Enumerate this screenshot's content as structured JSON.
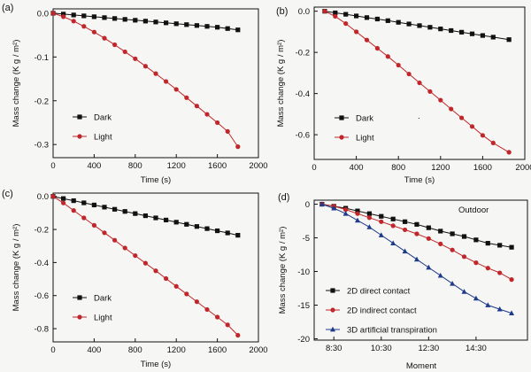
{
  "colors": {
    "dark": "#111111",
    "light": "#c0262a",
    "d2direct": "#111111",
    "d2indirect": "#c0262a",
    "d3": "#1e3a8a"
  },
  "chart_data": [
    {
      "panel": "(a)",
      "type": "line",
      "xlabel": "Time (s)",
      "ylabel": "Mass change (K g / m²)",
      "xlim": [
        0,
        2000
      ],
      "ylim": [
        -0.33,
        0.01
      ],
      "xticks": [
        0,
        400,
        800,
        1200,
        1600,
        2000
      ],
      "yticks": [
        0.0,
        -0.1,
        -0.2,
        -0.3
      ],
      "xtick_labels": [
        "0",
        "400",
        "800",
        "1200",
        "1600",
        "2000"
      ],
      "ytick_labels": [
        "0.0",
        "-0.1",
        "-0.2",
        "-0.3"
      ],
      "legend_position": "lower-left",
      "series": [
        {
          "name": "Dark",
          "marker": "square",
          "color": "#111111",
          "x": [
            0,
            100,
            200,
            300,
            400,
            500,
            600,
            700,
            800,
            900,
            1000,
            1100,
            1200,
            1300,
            1400,
            1500,
            1600,
            1700,
            1800
          ],
          "y": [
            0,
            -0.002,
            -0.004,
            -0.006,
            -0.008,
            -0.01,
            -0.012,
            -0.014,
            -0.016,
            -0.018,
            -0.02,
            -0.022,
            -0.024,
            -0.026,
            -0.028,
            -0.03,
            -0.032,
            -0.035,
            -0.038
          ]
        },
        {
          "name": "Light",
          "marker": "circle",
          "color": "#c0262a",
          "x": [
            0,
            100,
            200,
            300,
            400,
            500,
            600,
            700,
            800,
            900,
            1000,
            1100,
            1200,
            1300,
            1400,
            1500,
            1600,
            1700,
            1800
          ],
          "y": [
            0,
            -0.008,
            -0.018,
            -0.03,
            -0.043,
            -0.057,
            -0.072,
            -0.088,
            -0.104,
            -0.121,
            -0.138,
            -0.156,
            -0.174,
            -0.193,
            -0.212,
            -0.231,
            -0.25,
            -0.27,
            -0.305
          ]
        }
      ]
    },
    {
      "panel": "(b)",
      "type": "line",
      "xlabel": "Time (s)",
      "ylabel": "Mass change (K g / m²)",
      "xlim": [
        0,
        2000
      ],
      "ylim": [
        -0.72,
        0.02
      ],
      "xticks": [
        0,
        400,
        800,
        1200,
        1600,
        2000
      ],
      "yticks": [
        0.0,
        -0.2,
        -0.4,
        -0.6
      ],
      "xtick_labels": [
        "0",
        "400",
        "800",
        "1200",
        "1600",
        "2000"
      ],
      "ytick_labels": [
        "0.0",
        "-0.2",
        "-0.4",
        "-0.6"
      ],
      "legend_position": "lower-left",
      "annotations": [
        "."
      ],
      "series": [
        {
          "name": "Dark",
          "marker": "square",
          "color": "#111111",
          "x": [
            100,
            200,
            300,
            400,
            500,
            600,
            700,
            800,
            900,
            1000,
            1100,
            1200,
            1300,
            1400,
            1500,
            1600,
            1700,
            1850
          ],
          "y": [
            0,
            -0.008,
            -0.015,
            -0.023,
            -0.031,
            -0.038,
            -0.046,
            -0.054,
            -0.062,
            -0.07,
            -0.078,
            -0.086,
            -0.094,
            -0.102,
            -0.11,
            -0.118,
            -0.126,
            -0.138
          ]
        },
        {
          "name": "Light",
          "marker": "circle",
          "color": "#c0262a",
          "x": [
            100,
            200,
            300,
            400,
            500,
            600,
            700,
            800,
            900,
            1000,
            1100,
            1200,
            1300,
            1400,
            1500,
            1600,
            1700,
            1850
          ],
          "y": [
            0,
            -0.025,
            -0.06,
            -0.1,
            -0.14,
            -0.18,
            -0.22,
            -0.262,
            -0.305,
            -0.348,
            -0.39,
            -0.432,
            -0.475,
            -0.518,
            -0.56,
            -0.603,
            -0.64,
            -0.685
          ]
        }
      ]
    },
    {
      "panel": "(c)",
      "type": "line",
      "xlabel": "Time (s)",
      "ylabel": "Mass change (K g / m²)",
      "xlim": [
        0,
        2000
      ],
      "ylim": [
        -0.88,
        0.02
      ],
      "xticks": [
        0,
        400,
        800,
        1200,
        1600,
        2000
      ],
      "yticks": [
        0.0,
        -0.2,
        -0.4,
        -0.6,
        -0.8
      ],
      "xtick_labels": [
        "0",
        "400",
        "800",
        "1200",
        "1600",
        "2000"
      ],
      "ytick_labels": [
        "0.0",
        "-0.2",
        "-0.4",
        "-0.6",
        "-0.8"
      ],
      "legend_position": "lower-left",
      "series": [
        {
          "name": "Dark",
          "marker": "square",
          "color": "#111111",
          "x": [
            0,
            100,
            200,
            300,
            400,
            500,
            600,
            700,
            800,
            900,
            1000,
            1100,
            1200,
            1300,
            1400,
            1500,
            1600,
            1700,
            1800
          ],
          "y": [
            0,
            -0.013,
            -0.026,
            -0.039,
            -0.052,
            -0.065,
            -0.078,
            -0.091,
            -0.104,
            -0.117,
            -0.13,
            -0.143,
            -0.156,
            -0.169,
            -0.182,
            -0.195,
            -0.208,
            -0.221,
            -0.235
          ]
        },
        {
          "name": "Light",
          "marker": "circle",
          "color": "#c0262a",
          "x": [
            0,
            100,
            200,
            300,
            400,
            500,
            600,
            700,
            800,
            900,
            1000,
            1100,
            1200,
            1300,
            1400,
            1500,
            1600,
            1700,
            1800
          ],
          "y": [
            0,
            -0.04,
            -0.085,
            -0.13,
            -0.175,
            -0.22,
            -0.265,
            -0.312,
            -0.358,
            -0.404,
            -0.45,
            -0.497,
            -0.544,
            -0.59,
            -0.637,
            -0.684,
            -0.73,
            -0.777,
            -0.84
          ]
        }
      ]
    },
    {
      "panel": "(d)",
      "type": "line",
      "xlabel": "Moment",
      "ylabel": "Mass change (K g / m²)",
      "xlim": [
        7.67,
        16.67
      ],
      "ylim": [
        -20.2,
        0.6
      ],
      "xticks": [
        8.5,
        10.5,
        12.5,
        14.5
      ],
      "yticks": [
        0,
        -5,
        -10,
        -15,
        -20
      ],
      "xtick_labels": [
        "8:30",
        "10:30",
        "12:30",
        "14:30"
      ],
      "ytick_labels": [
        "0",
        "-5",
        "-10",
        "-15",
        "-20"
      ],
      "legend_position": "lower-left",
      "annotations": [
        "Outdoor"
      ],
      "series": [
        {
          "name": "2D direct contact",
          "marker": "square",
          "color": "#111111",
          "x": [
            8,
            8.5,
            9,
            9.5,
            10,
            10.5,
            11,
            11.5,
            12,
            12.5,
            13,
            13.5,
            14,
            14.5,
            15,
            15.5,
            16
          ],
          "y": [
            0,
            -0.3,
            -0.6,
            -1.0,
            -1.4,
            -1.8,
            -2.2,
            -2.6,
            -3.0,
            -3.5,
            -4.0,
            -4.4,
            -4.8,
            -5.3,
            -5.8,
            -6.1,
            -6.4
          ]
        },
        {
          "name": "2D indirect contact",
          "marker": "circle",
          "color": "#c0262a",
          "x": [
            8,
            8.5,
            9,
            9.5,
            10,
            10.5,
            11,
            11.5,
            12,
            12.5,
            13,
            13.5,
            14,
            14.5,
            15,
            15.5,
            16
          ],
          "y": [
            0,
            -0.3,
            -0.8,
            -1.4,
            -2.0,
            -2.6,
            -3.2,
            -3.8,
            -4.4,
            -5.1,
            -5.9,
            -6.8,
            -7.8,
            -8.7,
            -9.5,
            -10.2,
            -11.2
          ]
        },
        {
          "name": "3D artificial transpiration",
          "marker": "triangle",
          "color": "#1e3a8a",
          "x": [
            8,
            8.5,
            9,
            9.5,
            10,
            10.5,
            11,
            11.5,
            12,
            12.5,
            13,
            13.5,
            14,
            14.5,
            15,
            15.5,
            16
          ],
          "y": [
            0,
            -0.6,
            -1.4,
            -2.4,
            -3.4,
            -4.6,
            -5.8,
            -7.0,
            -8.2,
            -9.4,
            -10.6,
            -11.8,
            -13.0,
            -14.0,
            -15.0,
            -15.6,
            -16.2
          ]
        }
      ]
    }
  ]
}
